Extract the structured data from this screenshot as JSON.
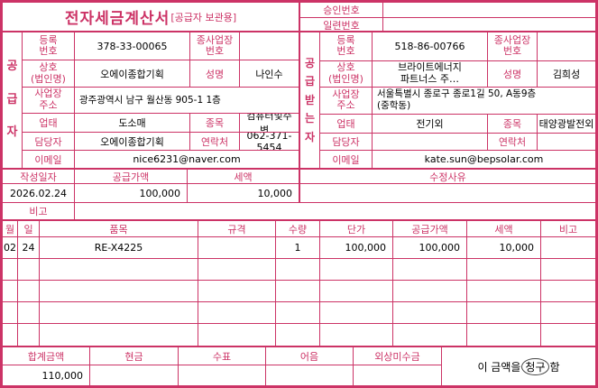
{
  "colors": {
    "accent": "#cc3366",
    "text": "#000000"
  },
  "title": {
    "main": "전자세금계산서",
    "sub": "[공급자 보관용]"
  },
  "approval": {
    "approval_label": "승인번호",
    "approval_value": "",
    "serial_label": "일련번호",
    "serial_value": ""
  },
  "supplier": {
    "side_label": "공\n급\n자",
    "reg_no_label": "등록\n번호",
    "reg_no": "378-33-00065",
    "sub_biz_label": "종사업장\n번호",
    "sub_biz": "",
    "company_label": "상호\n(법인명)",
    "company": "오에이종합기획",
    "name_label": "성명",
    "name": "나인수",
    "address_label": "사업장\n주소",
    "address": "광주광역시 남구 월산동  905-1 1층",
    "biz_type_label": "업태",
    "biz_type": "도소매",
    "item_label": "종목",
    "item": "컴퓨터및주변…",
    "contact_label": "담당자",
    "contact": "오에이종합기획",
    "phone_label": "연락처",
    "phone": "062-371-5454",
    "email_label": "이메일",
    "email": "nice6231@naver.com"
  },
  "buyer": {
    "side_label": "공\n급\n받\n는\n자",
    "reg_no_label": "등록\n번호",
    "reg_no": "518-86-00766",
    "sub_biz_label": "종사업장\n번호",
    "sub_biz": "",
    "company_label": "상호\n(법인명)",
    "company": "브라이트에너지\n파트너스 주…",
    "name_label": "성명",
    "name": "김희성",
    "address_label": "사업장\n주소",
    "address": "서울특별시 종로구 종로1길 50, A동9층\n(중학동)",
    "biz_type_label": "업태",
    "biz_type": "전기외",
    "item_label": "종목",
    "item": "태양광발전외",
    "contact_label": "담당자",
    "contact": "",
    "phone_label": "연락처",
    "phone": "",
    "email_label": "이메일",
    "email": "kate.sun@bepsolar.com"
  },
  "summary": {
    "date_label": "작성일자",
    "date": "2026.02.24",
    "supply_label": "공급가액",
    "supply": "100,000",
    "tax_label": "세액",
    "tax": "10,000",
    "revision_label": "수정사유",
    "revision": "",
    "remark_label": "비고",
    "remark": ""
  },
  "items": {
    "headers": [
      "월",
      "일",
      "품목",
      "규격",
      "수량",
      "단가",
      "공급가액",
      "세액",
      "비고"
    ],
    "rows": [
      {
        "month": "02",
        "day": "24",
        "name": "RE-X4225",
        "spec": "",
        "qty": "1",
        "unit_price": "100,000",
        "supply": "100,000",
        "tax": "10,000",
        "note": ""
      }
    ],
    "empty_row_count": 4
  },
  "totals": {
    "total_label": "합계금액",
    "total": "110,000",
    "cash_label": "현금",
    "cash": "",
    "check_label": "수표",
    "check": "",
    "note_label": "어음",
    "note": "",
    "credit_label": "외상미수금",
    "credit": "",
    "statement_pre": "이 금액을 ",
    "statement_emph": "청구",
    "statement_suf": "함"
  }
}
